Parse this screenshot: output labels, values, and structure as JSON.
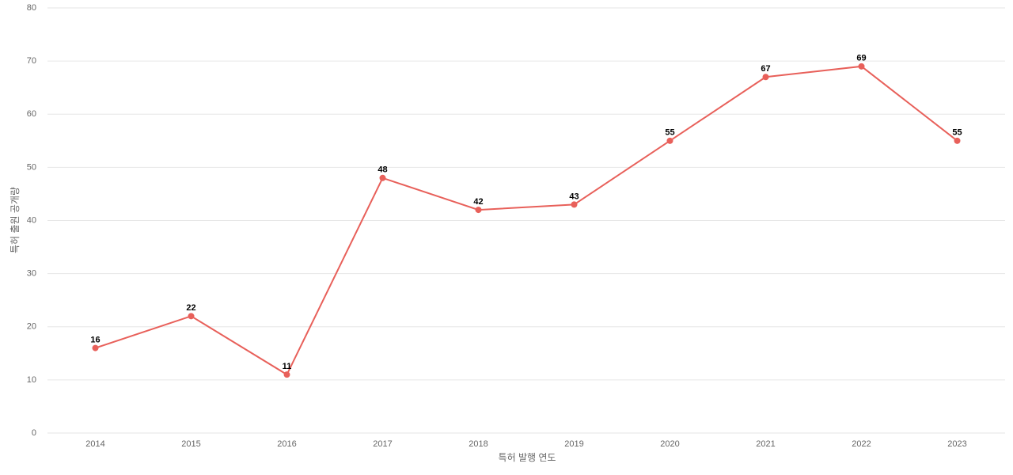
{
  "chart_data": {
    "type": "line",
    "x_label": "특허 발행 연도",
    "y_label": "특허 출원 공개량",
    "categories": [
      "2014",
      "2015",
      "2016",
      "2017",
      "2018",
      "2019",
      "2020",
      "2021",
      "2022",
      "2023"
    ],
    "series": [
      {
        "color": "#e8605a",
        "values": [
          16,
          22,
          11,
          48,
          42,
          43,
          55,
          67,
          69,
          55
        ]
      }
    ],
    "ylim": [
      0,
      80
    ],
    "yticks": [
      0,
      10,
      20,
      30,
      40,
      50,
      60,
      70,
      80
    ],
    "grid": true
  }
}
